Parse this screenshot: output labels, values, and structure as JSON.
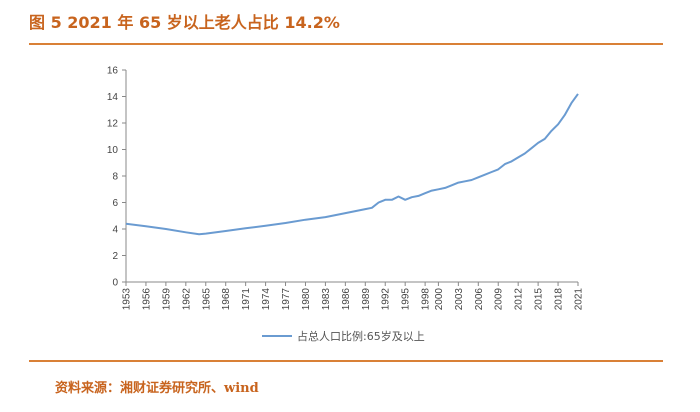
{
  "header": {
    "title": "图 5 2021 年 65 岁以上老人占比 14.2%"
  },
  "footer": {
    "source": "资料来源：湘财证券研究所、wind"
  },
  "colors": {
    "accent": "#c8641e",
    "rule": "#d98036",
    "series": "#6a9bd1"
  },
  "chart_data": {
    "type": "line",
    "title": "",
    "xlabel": "",
    "ylabel": "",
    "xlim": [
      1953,
      2021
    ],
    "ylim": [
      0,
      16
    ],
    "yticks": [
      0,
      2,
      4,
      6,
      8,
      10,
      12,
      14,
      16
    ],
    "xticks": [
      1953,
      1956,
      1959,
      1962,
      1965,
      1968,
      1971,
      1974,
      1977,
      1980,
      1983,
      1986,
      1989,
      1992,
      1995,
      1998,
      2000,
      2003,
      2006,
      2009,
      2012,
      2015,
      2018,
      2021
    ],
    "grid": false,
    "legend": "bottom-center",
    "series": [
      {
        "name": "占总人口比例:65岁及以上",
        "x": [
          1953,
          1956,
          1959,
          1962,
          1964,
          1965,
          1968,
          1971,
          1974,
          1977,
          1980,
          1983,
          1986,
          1989,
          1990,
          1991,
          1992,
          1993,
          1994,
          1995,
          1996,
          1997,
          1998,
          1999,
          2000,
          2001,
          2002,
          2003,
          2004,
          2005,
          2006,
          2007,
          2008,
          2009,
          2010,
          2011,
          2012,
          2013,
          2014,
          2015,
          2016,
          2017,
          2018,
          2019,
          2020,
          2021
        ],
        "values": [
          4.4,
          4.2,
          4.0,
          3.75,
          3.6,
          3.65,
          3.85,
          4.05,
          4.25,
          4.45,
          4.7,
          4.9,
          5.2,
          5.5,
          5.6,
          6.0,
          6.2,
          6.2,
          6.45,
          6.2,
          6.4,
          6.5,
          6.7,
          6.9,
          7.0,
          7.1,
          7.3,
          7.5,
          7.6,
          7.7,
          7.9,
          8.1,
          8.3,
          8.5,
          8.9,
          9.1,
          9.4,
          9.7,
          10.1,
          10.5,
          10.8,
          11.4,
          11.9,
          12.6,
          13.5,
          14.2
        ]
      }
    ]
  }
}
